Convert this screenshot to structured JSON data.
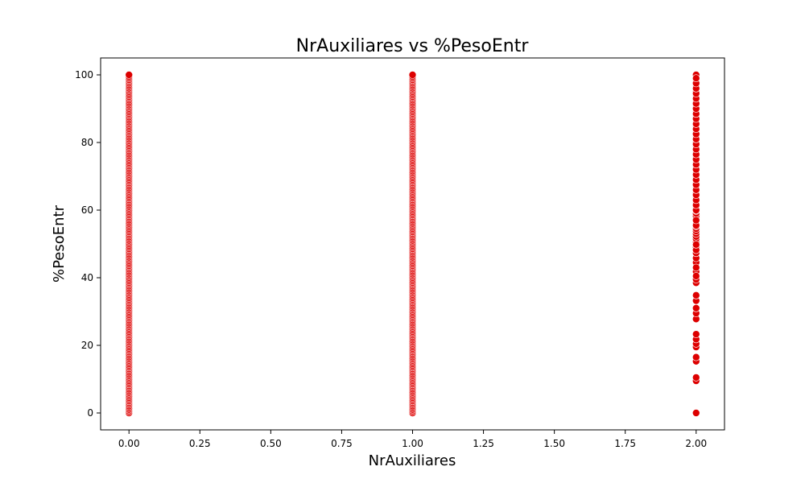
{
  "chart_data": {
    "type": "scatter",
    "title": "NrAuxiliares vs %PesoEntr",
    "xlabel": "NrAuxiliares",
    "ylabel": "%PesoEntr",
    "xlim": [
      -0.1,
      2.1
    ],
    "ylim": [
      -5,
      105
    ],
    "xticks": [
      0.0,
      0.25,
      0.5,
      0.75,
      1.0,
      1.25,
      1.5,
      1.75,
      2.0
    ],
    "xtick_labels": [
      "0.00",
      "0.25",
      "0.50",
      "0.75",
      "1.00",
      "1.25",
      "1.50",
      "1.75",
      "2.00"
    ],
    "yticks": [
      0,
      20,
      40,
      60,
      80,
      100
    ],
    "ytick_labels": [
      "0",
      "20",
      "40",
      "60",
      "80",
      "100"
    ],
    "grid": false,
    "point_color": "#dd0000",
    "point_edge_color": "#ffffff",
    "series": [
      {
        "x": [
          0,
          0,
          0,
          0,
          0,
          0,
          0,
          0,
          0,
          0,
          0,
          0,
          0,
          0,
          0,
          0,
          0,
          0,
          0,
          0,
          0,
          0,
          0,
          0,
          0,
          0,
          0,
          0,
          0,
          0,
          0,
          0,
          0,
          0,
          0,
          0,
          0,
          0,
          0,
          0,
          0,
          0,
          0,
          0,
          0,
          0,
          0,
          0,
          0,
          0,
          0,
          0,
          0,
          0,
          0,
          0,
          0,
          0,
          0,
          0,
          0,
          0,
          0,
          0,
          0,
          0,
          0,
          0,
          0,
          0,
          0,
          0,
          0,
          0,
          0,
          0,
          0,
          0,
          0,
          0,
          0,
          0,
          0,
          0,
          0,
          0,
          0,
          0,
          0,
          0,
          0,
          0,
          0,
          0,
          0,
          0,
          0,
          0,
          0,
          0,
          0,
          0,
          0,
          0,
          0,
          0,
          0,
          0,
          0,
          0,
          0,
          0,
          0,
          0,
          0,
          0,
          0,
          0,
          0,
          0,
          0,
          0,
          0,
          0,
          0,
          0,
          0,
          0,
          0,
          0,
          0,
          0,
          0,
          0,
          0,
          0,
          0,
          0,
          0,
          0,
          0,
          0,
          0,
          0,
          0,
          0,
          0,
          0,
          0,
          0,
          0,
          0,
          0,
          0,
          0,
          0,
          0,
          0,
          0,
          0,
          0,
          0,
          0,
          0,
          0,
          0,
          0,
          0,
          0,
          0,
          0,
          0,
          0,
          0,
          0,
          0,
          0,
          0,
          0,
          0,
          0,
          0,
          0,
          0,
          0,
          0,
          0,
          0,
          0,
          0,
          0,
          0,
          0,
          0,
          0,
          0,
          0,
          0,
          0,
          0,
          0
        ],
        "y": [
          0.0,
          0.5,
          1.0,
          1.5,
          2.0,
          2.5,
          3.0,
          3.5,
          4.0,
          4.5,
          5.0,
          5.5,
          6.0,
          6.5,
          7.0,
          7.5,
          8.0,
          8.5,
          9.0,
          9.5,
          10.0,
          10.5,
          11.0,
          11.5,
          12.0,
          12.5,
          13.0,
          13.5,
          14.0,
          14.5,
          15.0,
          15.5,
          16.0,
          16.5,
          17.0,
          17.5,
          18.0,
          18.5,
          19.0,
          19.5,
          20.0,
          20.5,
          21.0,
          21.5,
          22.0,
          22.5,
          23.0,
          23.5,
          24.0,
          24.5,
          25.0,
          25.5,
          26.0,
          26.5,
          27.0,
          27.5,
          28.0,
          28.5,
          29.0,
          29.5,
          30.0,
          30.5,
          31.0,
          31.5,
          32.0,
          32.5,
          33.0,
          33.5,
          34.0,
          34.5,
          35.0,
          35.5,
          36.0,
          36.5,
          37.0,
          37.5,
          38.0,
          38.5,
          39.0,
          39.5,
          40.0,
          40.5,
          41.0,
          41.5,
          42.0,
          42.5,
          43.0,
          43.5,
          44.0,
          44.5,
          45.0,
          45.5,
          46.0,
          46.5,
          47.0,
          47.5,
          48.0,
          48.5,
          49.0,
          49.5,
          50.0,
          50.5,
          51.0,
          51.5,
          52.0,
          52.5,
          53.0,
          53.5,
          54.0,
          54.5,
          55.0,
          55.5,
          56.0,
          56.5,
          57.0,
          57.5,
          58.0,
          58.5,
          59.0,
          59.5,
          60.0,
          60.5,
          61.0,
          61.5,
          62.0,
          62.5,
          63.0,
          63.5,
          64.0,
          64.5,
          65.0,
          65.5,
          66.0,
          66.5,
          67.0,
          67.5,
          68.0,
          68.5,
          69.0,
          69.5,
          70.0,
          70.5,
          71.0,
          71.5,
          72.0,
          72.5,
          73.0,
          73.5,
          74.0,
          74.5,
          75.0,
          75.5,
          76.0,
          76.5,
          77.0,
          77.5,
          78.0,
          78.5,
          79.0,
          79.5,
          80.0,
          80.5,
          81.0,
          81.5,
          82.0,
          82.5,
          83.0,
          83.5,
          84.0,
          84.5,
          85.0,
          85.5,
          86.0,
          86.5,
          87.0,
          87.5,
          88.0,
          88.5,
          89.0,
          89.5,
          90.0,
          90.5,
          91.0,
          91.5,
          92.0,
          92.5,
          93.0,
          93.5,
          94.0,
          94.5,
          95.0,
          95.5,
          96.0,
          96.5,
          97.0,
          97.5,
          98.0,
          98.5,
          99.0,
          99.5,
          100.0
        ]
      },
      {
        "x": [
          1,
          1,
          1,
          1,
          1,
          1,
          1,
          1,
          1,
          1,
          1,
          1,
          1,
          1,
          1,
          1,
          1,
          1,
          1,
          1,
          1,
          1,
          1,
          1,
          1,
          1,
          1,
          1,
          1,
          1,
          1,
          1,
          1,
          1,
          1,
          1,
          1,
          1,
          1,
          1,
          1,
          1,
          1,
          1,
          1,
          1,
          1,
          1,
          1,
          1,
          1,
          1,
          1,
          1,
          1,
          1,
          1,
          1,
          1,
          1,
          1,
          1,
          1,
          1,
          1,
          1,
          1,
          1,
          1,
          1,
          1,
          1,
          1,
          1,
          1,
          1,
          1,
          1,
          1,
          1,
          1,
          1,
          1,
          1,
          1,
          1,
          1,
          1,
          1,
          1,
          1,
          1,
          1,
          1,
          1,
          1,
          1,
          1,
          1,
          1,
          1,
          1,
          1,
          1,
          1,
          1,
          1,
          1,
          1,
          1,
          1,
          1,
          1,
          1,
          1,
          1,
          1,
          1,
          1,
          1,
          1,
          1,
          1,
          1,
          1,
          1,
          1,
          1,
          1,
          1,
          1,
          1,
          1,
          1,
          1,
          1,
          1,
          1,
          1,
          1,
          1,
          1,
          1,
          1,
          1,
          1,
          1,
          1,
          1,
          1,
          1,
          1,
          1,
          1,
          1,
          1,
          1,
          1,
          1,
          1,
          1,
          1,
          1,
          1,
          1,
          1,
          1,
          1,
          1,
          1,
          1,
          1,
          1,
          1,
          1,
          1,
          1,
          1,
          1,
          1,
          1,
          1,
          1,
          1,
          1,
          1,
          1,
          1,
          1,
          1,
          1,
          1,
          1,
          1,
          1,
          1,
          1,
          1,
          1,
          1,
          1
        ],
        "y": [
          0.0,
          0.5,
          1.0,
          1.5,
          2.0,
          2.5,
          3.0,
          3.5,
          4.0,
          4.5,
          5.0,
          5.5,
          6.0,
          6.5,
          7.0,
          7.5,
          8.0,
          8.5,
          9.0,
          9.5,
          10.0,
          10.5,
          11.0,
          11.5,
          12.0,
          12.5,
          13.0,
          13.5,
          14.0,
          14.5,
          15.0,
          15.5,
          16.0,
          16.5,
          17.0,
          17.5,
          18.0,
          18.5,
          19.0,
          19.5,
          20.0,
          20.5,
          21.0,
          21.5,
          22.0,
          22.5,
          23.0,
          23.5,
          24.0,
          24.5,
          25.0,
          25.5,
          26.0,
          26.5,
          27.0,
          27.5,
          28.0,
          28.5,
          29.0,
          29.5,
          30.0,
          30.5,
          31.0,
          31.5,
          32.0,
          32.5,
          33.0,
          33.5,
          34.0,
          34.5,
          35.0,
          35.5,
          36.0,
          36.5,
          37.0,
          37.5,
          38.0,
          38.5,
          39.0,
          39.5,
          40.0,
          40.5,
          41.0,
          41.5,
          42.0,
          42.5,
          43.0,
          43.5,
          44.0,
          44.5,
          45.0,
          45.5,
          46.0,
          46.5,
          47.0,
          47.5,
          48.0,
          48.5,
          49.0,
          49.5,
          50.0,
          50.5,
          51.0,
          51.5,
          52.0,
          52.5,
          53.0,
          53.5,
          54.0,
          54.5,
          55.0,
          55.5,
          56.0,
          56.5,
          57.0,
          57.5,
          58.0,
          58.5,
          59.0,
          59.5,
          60.0,
          60.5,
          61.0,
          61.5,
          62.0,
          62.5,
          63.0,
          63.5,
          64.0,
          64.5,
          65.0,
          65.5,
          66.0,
          66.5,
          67.0,
          67.5,
          68.0,
          68.5,
          69.0,
          69.5,
          70.0,
          70.5,
          71.0,
          71.5,
          72.0,
          72.5,
          73.0,
          73.5,
          74.0,
          74.5,
          75.0,
          75.5,
          76.0,
          76.5,
          77.0,
          77.5,
          78.0,
          78.5,
          79.0,
          79.5,
          80.0,
          80.5,
          81.0,
          81.5,
          82.0,
          82.5,
          83.0,
          83.5,
          84.0,
          84.5,
          85.0,
          85.5,
          86.0,
          86.5,
          87.0,
          87.5,
          88.0,
          88.5,
          89.0,
          89.5,
          90.0,
          90.5,
          91.0,
          91.5,
          92.0,
          92.5,
          93.0,
          93.5,
          94.0,
          94.5,
          95.0,
          95.5,
          96.0,
          96.5,
          97.0,
          97.5,
          98.0,
          98.5,
          99.0,
          99.5,
          100.0
        ]
      },
      {
        "x": [
          2,
          2,
          2,
          2,
          2,
          2,
          2,
          2,
          2,
          2,
          2,
          2,
          2,
          2,
          2,
          2,
          2,
          2,
          2,
          2,
          2,
          2,
          2,
          2,
          2,
          2,
          2,
          2,
          2,
          2,
          2,
          2,
          2,
          2,
          2,
          2,
          2,
          2,
          2,
          2,
          2,
          2,
          2,
          2,
          2,
          2,
          2,
          2,
          2,
          2,
          2,
          2,
          2,
          2,
          2,
          2,
          2,
          2,
          2,
          2,
          2,
          2,
          2,
          2,
          2,
          2,
          2,
          2,
          2,
          2,
          2,
          2,
          2,
          2,
          2,
          2,
          2,
          2,
          2,
          2,
          2,
          2,
          2,
          2,
          2,
          2,
          2,
          2,
          2,
          2,
          2,
          2,
          2,
          2,
          2,
          2,
          2,
          2,
          2,
          2,
          2,
          2,
          2,
          2,
          2,
          2,
          2,
          2,
          2,
          2,
          2,
          2,
          2,
          2,
          2,
          2,
          2,
          2,
          2,
          2,
          2
        ],
        "y": [
          0,
          9.5,
          10.5,
          15.3,
          16.5,
          19.5,
          20.5,
          21.8,
          23.3,
          27.8,
          29.5,
          31.0,
          33.2,
          34.8,
          38.5,
          39.5,
          41.8,
          44.5,
          45.8,
          47.3,
          49.0,
          50.5,
          51.5,
          52.2,
          53.0,
          53.8,
          54.5,
          55.2,
          56.0,
          56.8,
          57.5,
          58.2,
          59.0,
          59.8,
          60.5,
          61.2,
          62.0,
          62.8,
          63.5,
          64.2,
          65.0,
          65.8,
          66.5,
          67.2,
          68.0,
          68.8,
          69.5,
          70.2,
          71.0,
          71.8,
          72.5,
          73.2,
          74.0,
          74.8,
          75.5,
          76.2,
          77.0,
          77.8,
          78.5,
          79.2,
          80.0,
          80.8,
          81.5,
          82.2,
          83.0,
          83.8,
          84.5,
          85.2,
          86.0,
          86.8,
          87.5,
          88.2,
          89.0,
          89.8,
          90.5,
          91.2,
          92.0,
          92.8,
          93.5,
          94.2,
          95.0,
          95.8,
          96.5,
          97.2,
          98.0,
          98.8,
          99.5,
          100.0,
          40.5,
          43.0,
          48.2,
          49.8,
          55.5,
          57.0,
          60.0,
          61.5,
          63.0,
          64.5,
          66.0,
          67.5,
          69.0,
          70.5,
          72.0,
          73.5,
          75.0,
          76.5,
          78.0,
          79.5,
          81.0,
          82.5,
          84.0,
          85.5,
          87.0,
          88.5,
          90.0,
          91.5,
          93.0,
          94.5,
          96.0,
          97.5,
          99.0
        ]
      }
    ]
  }
}
